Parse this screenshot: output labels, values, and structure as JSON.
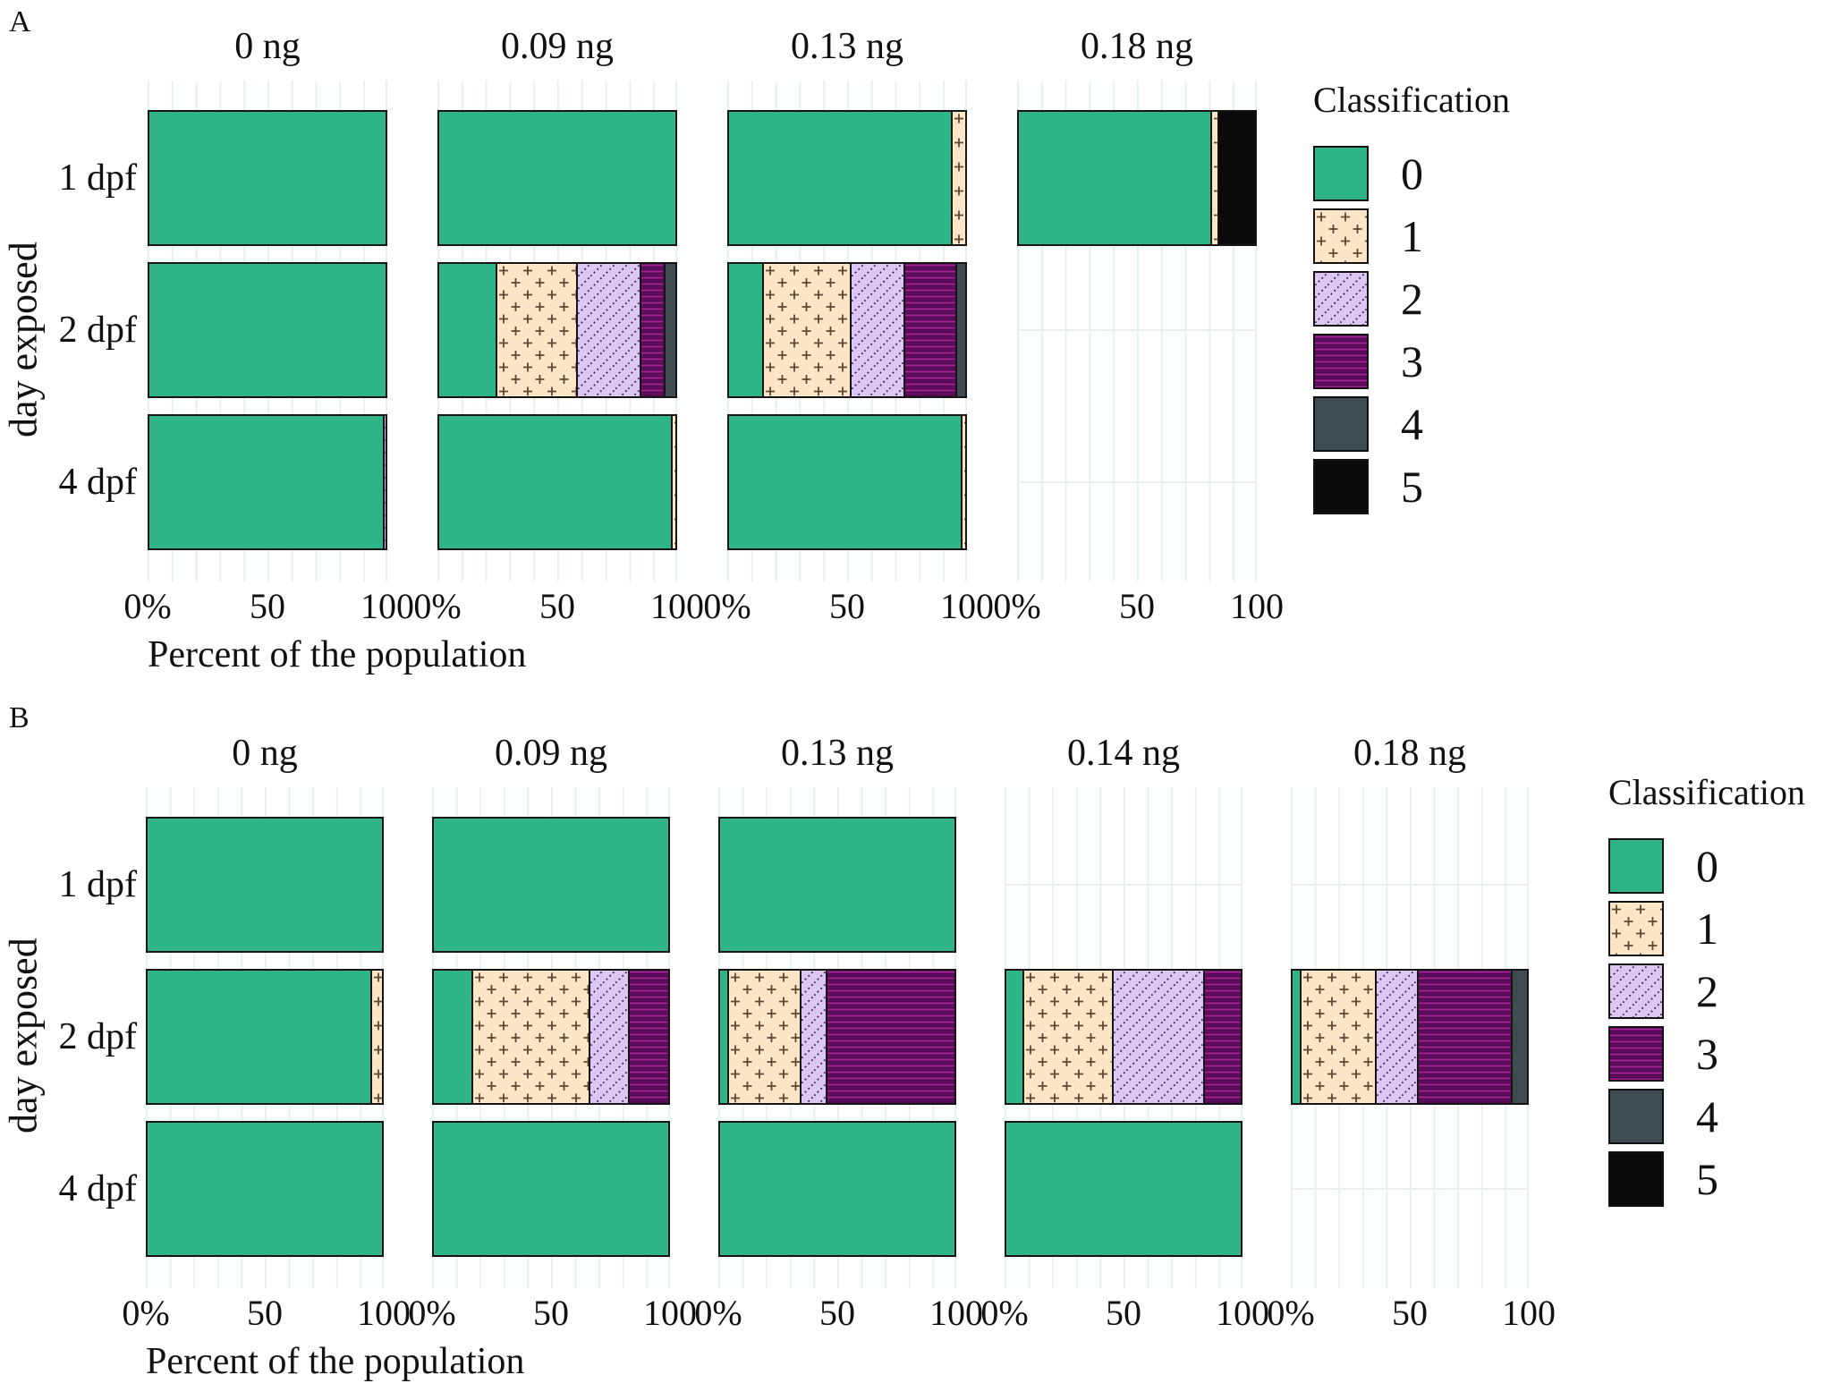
{
  "classes": [
    {
      "id": "0",
      "label": "0",
      "color": "#2eb487",
      "pattern": "solid"
    },
    {
      "id": "1",
      "label": "1",
      "color": "#fce6c6",
      "pattern": "plus"
    },
    {
      "id": "2",
      "label": "2",
      "color": "#dbc6f4",
      "pattern": "diagonal-dots"
    },
    {
      "id": "3",
      "label": "3",
      "color": "#500a50",
      "pattern": "horizontal-lines"
    },
    {
      "id": "4",
      "label": "4",
      "color": "#3e4b50",
      "pattern": "solid"
    },
    {
      "id": "5",
      "label": "5",
      "color": "#0a0a0a",
      "pattern": "solid"
    }
  ],
  "style": {
    "gridline_color": "#e8f1ef",
    "bar_border_color": "#151515",
    "plus_mark_color": "#5f4631",
    "diagonal_line_color": "#362052",
    "stripe_line_color": "#a1208f"
  },
  "chart_data": [
    {
      "panel": "A",
      "type": "bar",
      "stacked": true,
      "orientation": "horizontal",
      "units": "percent",
      "xlabel": "Percent of the population",
      "ylabel": "day exposed",
      "xlim": [
        0,
        100
      ],
      "x_ticks": [
        "0%",
        "50",
        "100"
      ],
      "y_categories": [
        "1 dpf",
        "2 dpf",
        "4 dpf"
      ],
      "legend": {
        "title": "Classification",
        "position": "right",
        "entries": [
          "0",
          "1",
          "2",
          "3",
          "4",
          "5"
        ]
      },
      "facets": [
        {
          "label": "0 ng",
          "bars": [
            {
              "y": "1 dpf",
              "segments": [
                {
                  "class": "0",
                  "value": 100
                }
              ]
            },
            {
              "y": "2 dpf",
              "segments": [
                {
                  "class": "0",
                  "value": 100
                }
              ]
            },
            {
              "y": "4 dpf",
              "segments": [
                {
                  "class": "0",
                  "value": 99
                },
                {
                  "class": "2",
                  "value": 1
                }
              ]
            }
          ]
        },
        {
          "label": "0.09 ng",
          "bars": [
            {
              "y": "1 dpf",
              "segments": [
                {
                  "class": "0",
                  "value": 100
                }
              ]
            },
            {
              "y": "2 dpf",
              "segments": [
                {
                  "class": "0",
                  "value": 24
                },
                {
                  "class": "1",
                  "value": 34
                },
                {
                  "class": "2",
                  "value": 27
                },
                {
                  "class": "3",
                  "value": 10
                },
                {
                  "class": "4",
                  "value": 5
                }
              ]
            },
            {
              "y": "4 dpf",
              "segments": [
                {
                  "class": "0",
                  "value": 98
                },
                {
                  "class": "1",
                  "value": 2
                }
              ]
            }
          ]
        },
        {
          "label": "0.13 ng",
          "bars": [
            {
              "y": "1 dpf",
              "segments": [
                {
                  "class": "0",
                  "value": 94
                },
                {
                  "class": "1",
                  "value": 6
                }
              ]
            },
            {
              "y": "2 dpf",
              "segments": [
                {
                  "class": "0",
                  "value": 14
                },
                {
                  "class": "1",
                  "value": 37
                },
                {
                  "class": "2",
                  "value": 23
                },
                {
                  "class": "3",
                  "value": 22
                },
                {
                  "class": "4",
                  "value": 4
                }
              ]
            },
            {
              "y": "4 dpf",
              "segments": [
                {
                  "class": "0",
                  "value": 98
                },
                {
                  "class": "1",
                  "value": 2
                }
              ]
            }
          ]
        },
        {
          "label": "0.18 ng",
          "bars": [
            {
              "y": "1 dpf",
              "segments": [
                {
                  "class": "0",
                  "value": 81
                },
                {
                  "class": "1",
                  "value": 3
                },
                {
                  "class": "5",
                  "value": 16
                }
              ]
            },
            {
              "y": "2 dpf",
              "segments": null
            },
            {
              "y": "4 dpf",
              "segments": null
            }
          ]
        }
      ]
    },
    {
      "panel": "B",
      "type": "bar",
      "stacked": true,
      "orientation": "horizontal",
      "units": "percent",
      "xlabel": "Percent of the population",
      "ylabel": "day exposed",
      "xlim": [
        0,
        100
      ],
      "x_ticks": [
        "0%",
        "50",
        "100"
      ],
      "y_categories": [
        "1 dpf",
        "2 dpf",
        "4 dpf"
      ],
      "legend": {
        "title": "Classification",
        "position": "right",
        "entries": [
          "0",
          "1",
          "2",
          "3",
          "4",
          "5"
        ]
      },
      "facets": [
        {
          "label": "0 ng",
          "bars": [
            {
              "y": "1 dpf",
              "segments": [
                {
                  "class": "0",
                  "value": 100
                }
              ]
            },
            {
              "y": "2 dpf",
              "segments": [
                {
                  "class": "0",
                  "value": 95
                },
                {
                  "class": "1",
                  "value": 5
                }
              ]
            },
            {
              "y": "4 dpf",
              "segments": [
                {
                  "class": "0",
                  "value": 100
                }
              ]
            }
          ]
        },
        {
          "label": "0.09 ng",
          "bars": [
            {
              "y": "1 dpf",
              "segments": [
                {
                  "class": "0",
                  "value": 100
                }
              ]
            },
            {
              "y": "2 dpf",
              "segments": [
                {
                  "class": "0",
                  "value": 16
                },
                {
                  "class": "1",
                  "value": 50
                },
                {
                  "class": "2",
                  "value": 17
                },
                {
                  "class": "3",
                  "value": 17
                }
              ]
            },
            {
              "y": "4 dpf",
              "segments": [
                {
                  "class": "0",
                  "value": 100
                }
              ]
            }
          ]
        },
        {
          "label": "0.13 ng",
          "bars": [
            {
              "y": "1 dpf",
              "segments": [
                {
                  "class": "0",
                  "value": 100
                }
              ]
            },
            {
              "y": "2 dpf",
              "segments": [
                {
                  "class": "0",
                  "value": 3
                },
                {
                  "class": "1",
                  "value": 31
                },
                {
                  "class": "2",
                  "value": 11
                },
                {
                  "class": "3",
                  "value": 55
                }
              ]
            },
            {
              "y": "4 dpf",
              "segments": [
                {
                  "class": "0",
                  "value": 100
                }
              ]
            }
          ]
        },
        {
          "label": "0.14 ng",
          "bars": [
            {
              "y": "1 dpf",
              "segments": null
            },
            {
              "y": "2 dpf",
              "segments": [
                {
                  "class": "0",
                  "value": 7
                },
                {
                  "class": "1",
                  "value": 38
                },
                {
                  "class": "2",
                  "value": 39
                },
                {
                  "class": "3",
                  "value": 16
                }
              ]
            },
            {
              "y": "4 dpf",
              "segments": [
                {
                  "class": "0",
                  "value": 100
                }
              ]
            }
          ]
        },
        {
          "label": "0.18 ng",
          "bars": [
            {
              "y": "1 dpf",
              "segments": null
            },
            {
              "y": "2 dpf",
              "segments": [
                {
                  "class": "0",
                  "value": 3
                },
                {
                  "class": "1",
                  "value": 32
                },
                {
                  "class": "2",
                  "value": 18
                },
                {
                  "class": "3",
                  "value": 40
                },
                {
                  "class": "4",
                  "value": 7
                }
              ]
            },
            {
              "y": "4 dpf",
              "segments": null
            }
          ]
        }
      ]
    }
  ]
}
